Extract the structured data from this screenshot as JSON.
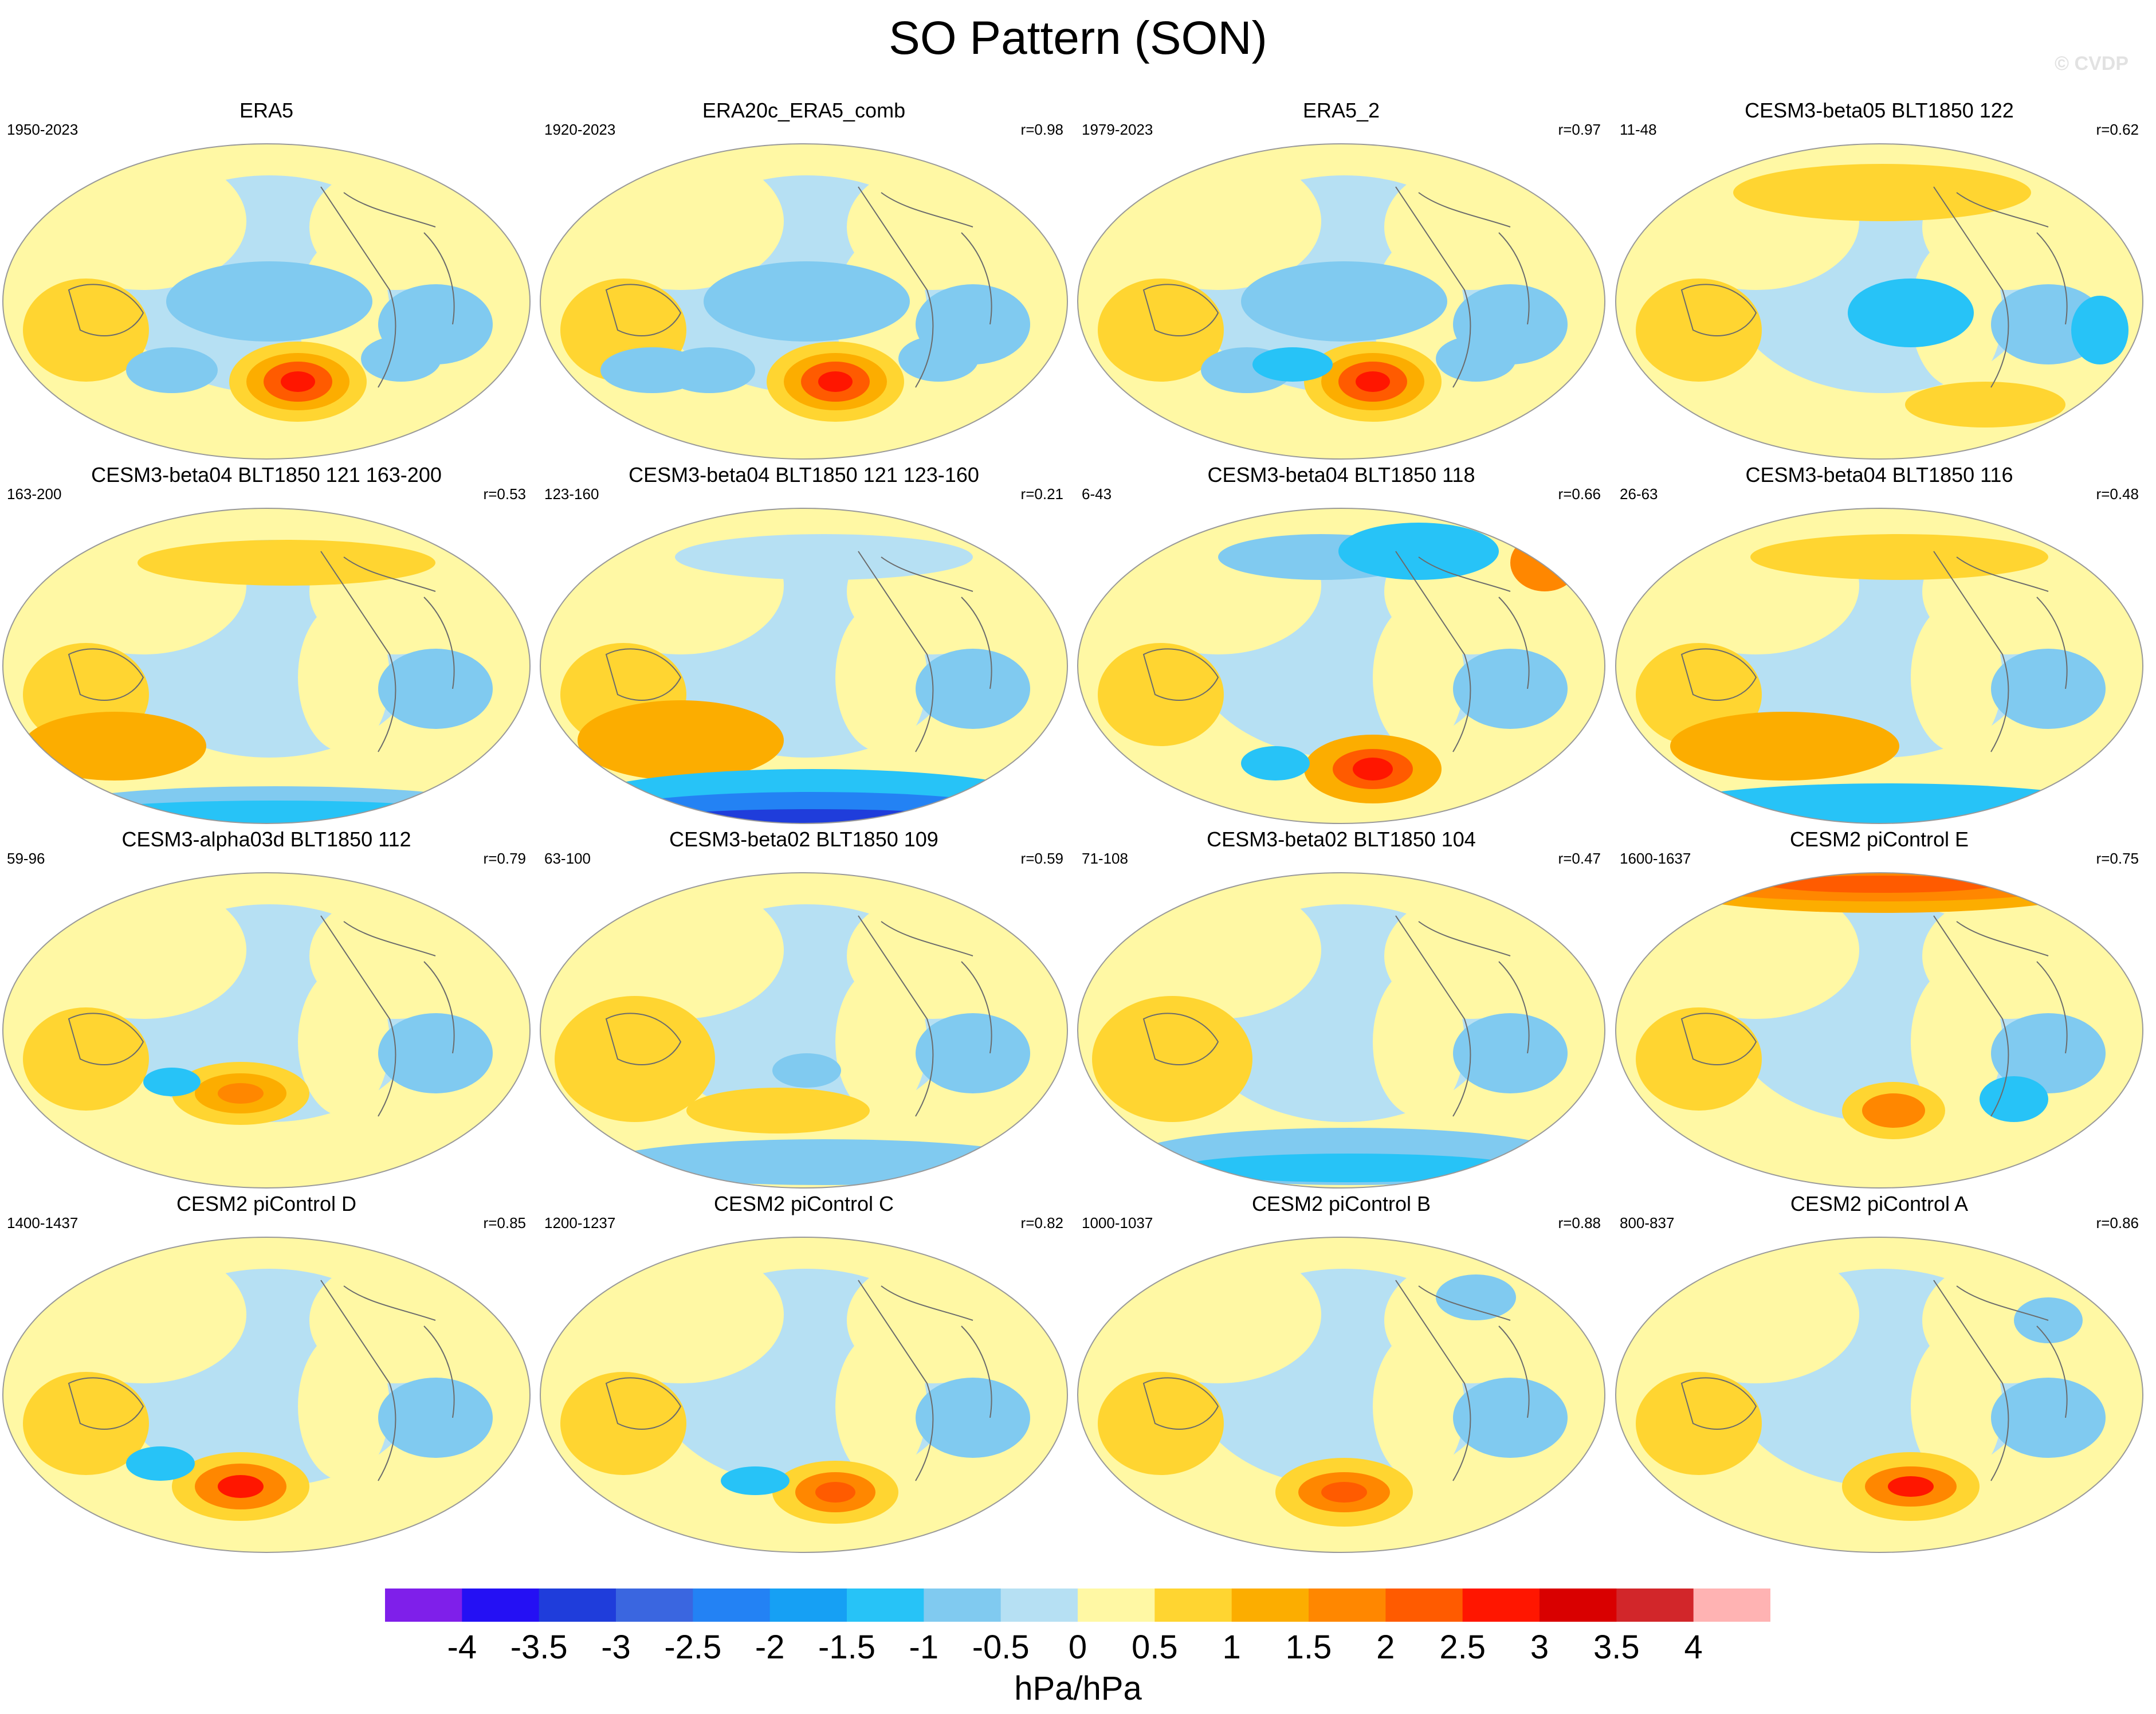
{
  "title": "SO Pattern (SON)",
  "watermark": "© CVDP",
  "panels": [
    {
      "title": "ERA5",
      "years": "1950-2023",
      "r": ""
    },
    {
      "title": "ERA20c_ERA5_comb",
      "years": "1920-2023",
      "r": "r=0.98"
    },
    {
      "title": "ERA5_2",
      "years": "1979-2023",
      "r": "r=0.97"
    },
    {
      "title": "CESM3-beta05 BLT1850 122",
      "years": "11-48",
      "r": "r=0.62"
    },
    {
      "title": "CESM3-beta04 BLT1850 121 163-200",
      "years": "163-200",
      "r": "r=0.53"
    },
    {
      "title": "CESM3-beta04 BLT1850 121 123-160",
      "years": "123-160",
      "r": "r=0.21"
    },
    {
      "title": "CESM3-beta04 BLT1850 118",
      "years": "6-43",
      "r": "r=0.66"
    },
    {
      "title": "CESM3-beta04 BLT1850 116",
      "years": "26-63",
      "r": "r=0.48"
    },
    {
      "title": "CESM3-alpha03d BLT1850 112",
      "years": "59-96",
      "r": "r=0.79"
    },
    {
      "title": "CESM3-beta02 BLT1850 109",
      "years": "63-100",
      "r": "r=0.59"
    },
    {
      "title": "CESM3-beta02 BLT1850 104",
      "years": "71-108",
      "r": "r=0.47"
    },
    {
      "title": "CESM2 piControl E",
      "years": "1600-1637",
      "r": "r=0.75"
    },
    {
      "title": "CESM2 piControl D",
      "years": "1400-1437",
      "r": "r=0.85"
    },
    {
      "title": "CESM2 piControl C",
      "years": "1200-1237",
      "r": "r=0.82"
    },
    {
      "title": "CESM2 piControl B",
      "years": "1000-1037",
      "r": "r=0.88"
    },
    {
      "title": "CESM2 piControl A",
      "years": "800-837",
      "r": "r=0.86"
    }
  ],
  "colorbar": {
    "colors": [
      "#7f1fea",
      "#2410f4",
      "#1f3ddb",
      "#3a66e0",
      "#2382f4",
      "#16a0f4",
      "#27c3f7",
      "#80caf0",
      "#b6e0f3",
      "#fff8a4",
      "#ffd531",
      "#fcad00",
      "#ff8700",
      "#ff5b00",
      "#ff1600",
      "#d90000",
      "#d2262a",
      "#ffb3b3"
    ],
    "labels": [
      "-4",
      "-3.5",
      "-3",
      "-2.5",
      "-2",
      "-1.5",
      "-1",
      "-0.5",
      "0",
      "0.5",
      "1",
      "1.5",
      "2",
      "2.5",
      "3",
      "3.5",
      "4"
    ],
    "units": "hPa/hPa"
  }
}
